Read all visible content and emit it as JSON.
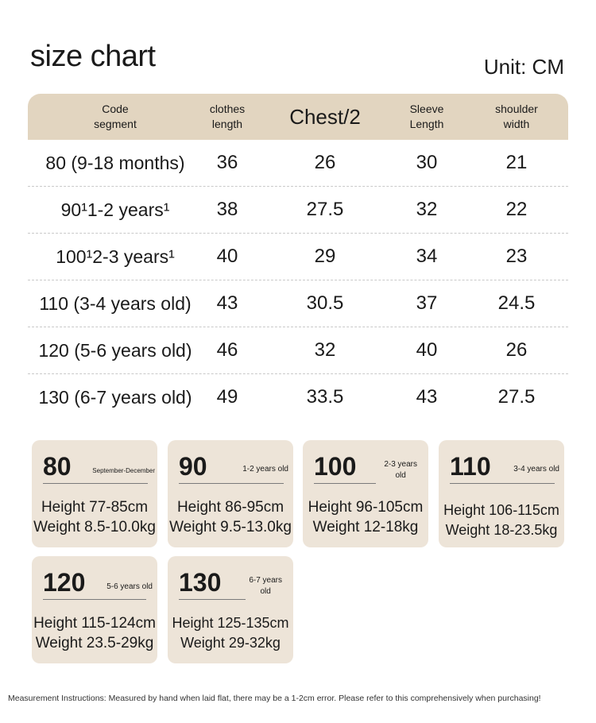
{
  "title": "size chart",
  "unit": "Unit: CM",
  "table": {
    "headers": {
      "code": [
        "Code",
        "segment"
      ],
      "length": [
        "clothes",
        "length"
      ],
      "chest": "Chest/2",
      "sleeve": [
        "Sleeve",
        "Length"
      ],
      "shoulder": [
        "shoulder",
        "width"
      ]
    },
    "rows": [
      {
        "segment": "80 (9-18 months)",
        "length": "36",
        "chest": "26",
        "sleeve": "30",
        "shoulder": "21"
      },
      {
        "segment": "90¹1-2 years¹",
        "length": "38",
        "chest": "27.5",
        "sleeve": "32",
        "shoulder": "22"
      },
      {
        "segment": "100¹2-3 years¹",
        "length": "40",
        "chest": "29",
        "sleeve": "34",
        "shoulder": "23"
      },
      {
        "segment": "110 (3-4 years old)",
        "length": "43",
        "chest": "30.5",
        "sleeve": "37",
        "shoulder": "24.5"
      },
      {
        "segment": "120 (5-6 years old)",
        "length": "46",
        "chest": "32",
        "sleeve": "40",
        "shoulder": "26"
      },
      {
        "segment": "130 (6-7 years old)",
        "length": "49",
        "chest": "33.5",
        "sleeve": "43",
        "shoulder": "27.5"
      }
    ]
  },
  "cards": [
    {
      "size": "80",
      "age": [
        "September-December"
      ],
      "height": "Height 77-85cm",
      "weight": "Weight 8.5-10.0kg"
    },
    {
      "size": "90",
      "age": [
        "1-2 years old"
      ],
      "height": "Height 86-95cm",
      "weight": "Weight 9.5-13.0kg"
    },
    {
      "size": "100",
      "age": [
        "2-3 years",
        "old"
      ],
      "height": "Height 96-105cm",
      "weight": "Weight 12-18kg"
    },
    {
      "size": "110",
      "age": [
        "3-4 years old"
      ],
      "height": "Height 106-115cm",
      "weight": "Weight 18-23.5kg"
    },
    {
      "size": "120",
      "age": [
        "5-6 years old"
      ],
      "height": "Height 115-124cm",
      "weight": "Weight 23.5-29kg"
    },
    {
      "size": "130",
      "age": [
        "6-7 years",
        "old"
      ],
      "height": "Height 125-135cm",
      "weight": "Weight 29-32kg"
    }
  ],
  "note": "Measurement Instructions: Measured by hand when laid flat, there may be a 1-2cm error. Please refer to this comprehensively when purchasing!"
}
